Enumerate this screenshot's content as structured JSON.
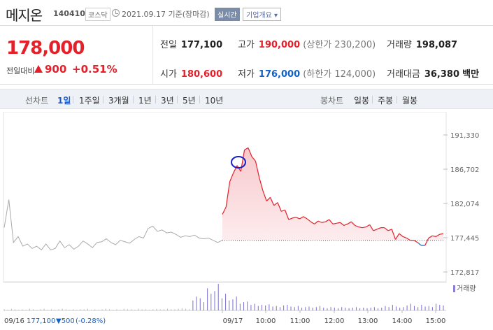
{
  "header": {
    "name": "메지온",
    "code": "140410",
    "market": "코스닥",
    "date": "2021.09.17 기준(장마감)",
    "realtime_label": "실시간",
    "corp_label": "기업개요 ▾"
  },
  "quote": {
    "price": "178,000",
    "change_label": "전일대비",
    "change": "900",
    "change_pct": "+0.51%",
    "prev_label": "전일",
    "prev": "177,100",
    "high_label": "고가",
    "high": "190,000",
    "upper_limit": "(상한가 230,200)",
    "volume_label": "거래량",
    "volume": "198,087",
    "open_label": "시가",
    "open": "180,600",
    "low_label": "저가",
    "low": "176,000",
    "lower_limit": "(하한가 124,000)",
    "amount_label": "거래대금",
    "amount": "36,380",
    "amount_unit": "백만"
  },
  "tabs": {
    "line_chart": "선차트",
    "periods": [
      "1일",
      "1주일",
      "3개월",
      "1년",
      "3년",
      "5년",
      "10년"
    ],
    "candle_chart": "봉차트",
    "candles": [
      "일봉",
      "주봉",
      "월봉"
    ]
  },
  "colors": {
    "up": "#e4202a",
    "down": "#1261c4",
    "prev": "#aaaaaa",
    "accent": "#1a5ad0"
  },
  "chart_data": {
    "type": "line",
    "y_ticks": [
      "191,330",
      "186,702",
      "182,074",
      "177,445",
      "172,817"
    ],
    "ylim": [
      172817,
      191330
    ],
    "x_ticks": [
      "09/17",
      "10:00",
      "11:00",
      "12:00",
      "13:00",
      "14:00",
      "15:00"
    ],
    "prev_close": 177100,
    "volume_legend": "거래량",
    "footer": {
      "left_date": "09/16",
      "left_close": "177,100",
      "left_change": "▼500",
      "left_pct": "(-0.28%)"
    },
    "previous_day": {
      "name": "09/16",
      "values": [
        178800,
        182600,
        176800,
        177600,
        176300,
        176600,
        176000,
        176300,
        175800,
        176600,
        175800,
        176000,
        177000,
        176100,
        176500,
        175900,
        176300,
        177000,
        176600,
        176100,
        176800,
        176900,
        177300,
        176800,
        176500,
        177100,
        176900,
        176700,
        177200,
        177600,
        177400,
        178700,
        179000,
        178300,
        178500,
        178100,
        178200,
        177900,
        177500,
        177700,
        177600,
        177800,
        177400,
        177300,
        177400,
        177100,
        176800,
        177100
      ]
    },
    "today": {
      "name": "09/17",
      "values": [
        180600,
        181600,
        185000,
        186200,
        187200,
        186400,
        189300,
        189600,
        188400,
        187800,
        185600,
        183800,
        182400,
        182900,
        181800,
        182200,
        181000,
        181200,
        179900,
        180100,
        180200,
        180000,
        180300,
        180000,
        179600,
        179300,
        179700,
        179500,
        179600,
        179900,
        179300,
        179400,
        179500,
        179100,
        179300,
        179600,
        179100,
        178900,
        178800,
        178900,
        179200,
        178400,
        178600,
        178800,
        178800,
        178400,
        178600,
        177200,
        178000,
        177600,
        177400,
        177100,
        177100,
        176800,
        176400,
        176400,
        177400,
        177700,
        177600,
        177900,
        178000
      ]
    },
    "volume_bars": [
      2,
      1,
      3,
      2,
      1,
      2,
      1,
      3,
      2,
      1,
      2,
      3,
      1,
      2,
      1,
      2,
      3,
      2,
      1,
      2,
      1,
      2,
      2,
      3,
      1,
      2,
      1,
      2,
      3,
      2,
      1,
      2,
      1,
      3,
      2,
      2,
      1,
      3,
      2,
      2,
      1,
      2,
      3,
      2,
      2,
      3,
      2,
      2,
      3,
      4,
      3,
      2,
      18,
      25,
      22,
      15,
      40,
      30,
      35,
      48,
      22,
      30,
      18,
      20,
      25,
      12,
      15,
      16,
      10,
      12,
      8,
      10,
      9,
      11,
      7,
      8,
      6,
      9,
      10,
      7,
      6,
      8,
      5,
      6,
      7,
      5,
      6,
      8,
      5,
      4,
      6,
      5,
      4,
      6,
      5,
      4,
      5,
      6,
      4,
      5,
      4,
      5,
      6,
      4,
      5,
      8,
      6,
      10,
      7,
      5,
      6,
      9,
      12,
      8,
      6,
      10,
      7,
      8,
      6,
      12,
      10,
      9
    ]
  }
}
